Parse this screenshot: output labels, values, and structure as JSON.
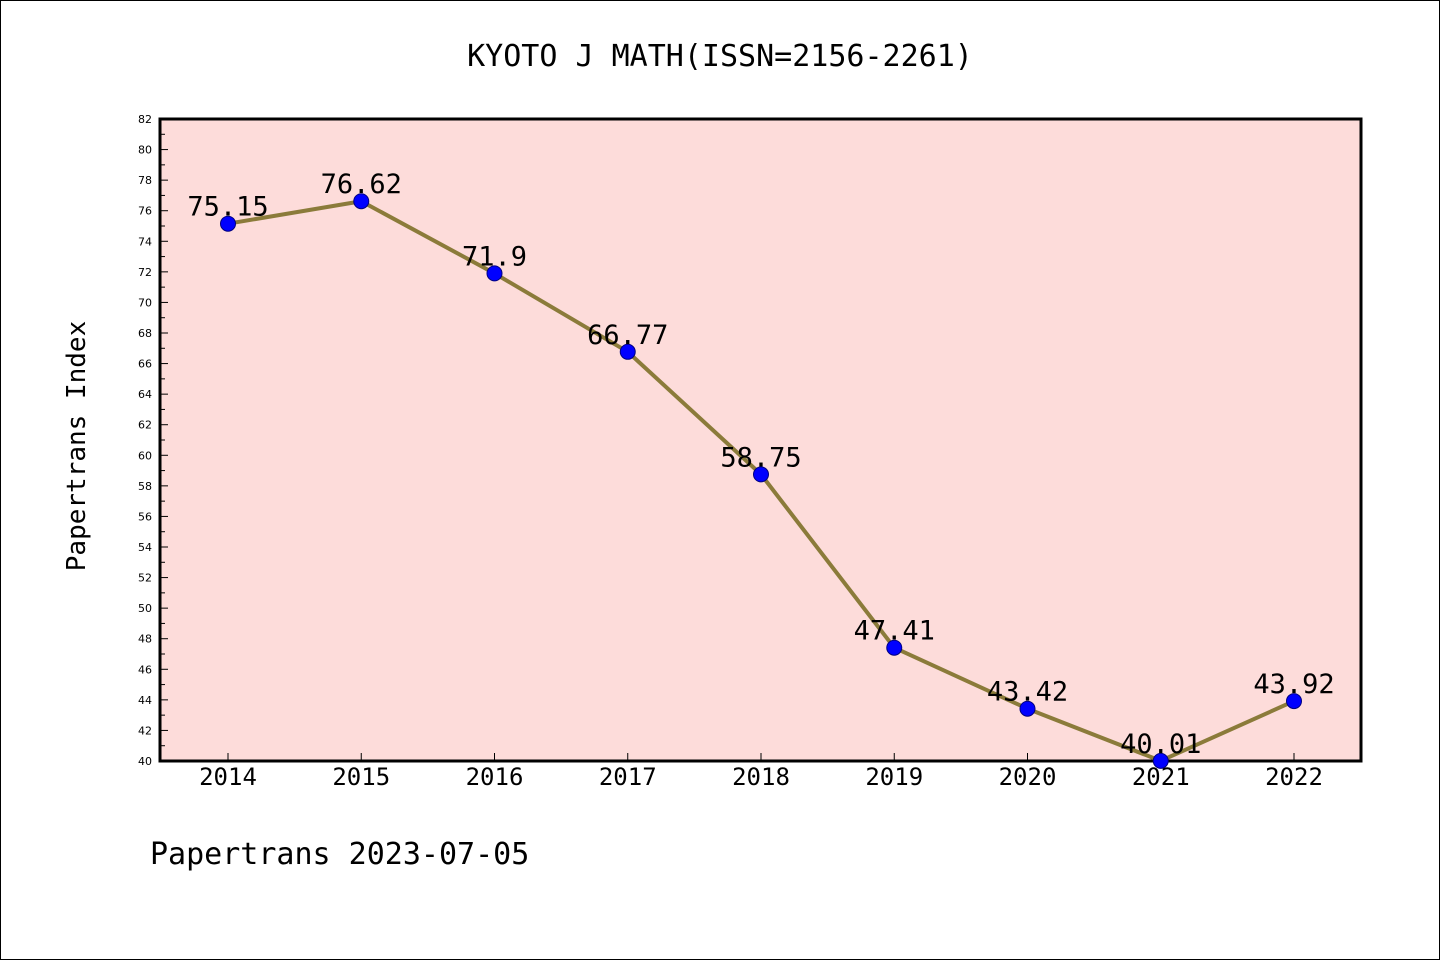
{
  "chart_data": {
    "type": "line",
    "title": "KYOTO J MATH(ISSN=2156-2261)",
    "xlabel": "",
    "ylabel": "Papertrans Index",
    "categories": [
      "2014",
      "2015",
      "2016",
      "2017",
      "2018",
      "2019",
      "2020",
      "2021",
      "2022"
    ],
    "series": [
      {
        "values": [
          75.15,
          76.62,
          71.9,
          66.77,
          58.75,
          47.41,
          43.42,
          40.01,
          43.92
        ],
        "data_labels": [
          "75.15",
          "76.62",
          "71.9",
          "66.77",
          "58.75",
          "47.41",
          "43.42",
          "40.01",
          "43.92"
        ]
      }
    ],
    "ylim": [
      40,
      82
    ],
    "y_major_step": 2,
    "grid": false,
    "legend": "none",
    "footer": "Papertrans 2023-07-05",
    "colors": {
      "plot_background": "#FDDCDA",
      "line": "#8B7B3A",
      "marker": "#0000FF",
      "marker_edge": "#000080"
    }
  }
}
